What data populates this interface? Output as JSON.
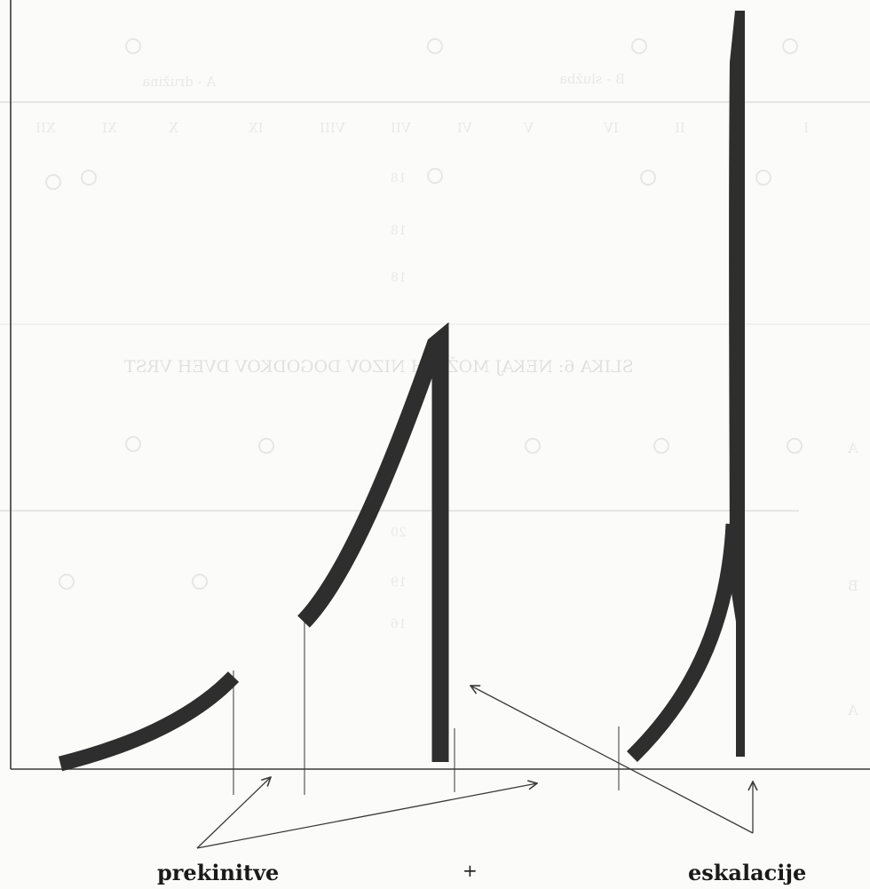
{
  "diagram": {
    "labels": {
      "left": "prekinitve",
      "plus": "+",
      "right": "eskalacije"
    },
    "ink_color": "#2e2e2e",
    "line_color": "#3a3a3a",
    "background": "#fbfbfa"
  },
  "show_through": {
    "heading": "SLIKA 6: NEKAJ MOŽNIH NIZOV DOGODKOV DVEH VRST",
    "legend_a": "A - družina",
    "legend_b": "B - služba",
    "months": [
      "I",
      "II",
      "IV",
      "V",
      "VI",
      "VII",
      "VIII",
      "IX",
      "X",
      "XI",
      "XII"
    ],
    "row_marks": [
      "A",
      "B",
      "A"
    ],
    "numbers": [
      "18",
      "18",
      "18",
      "20",
      "19",
      "16"
    ]
  }
}
